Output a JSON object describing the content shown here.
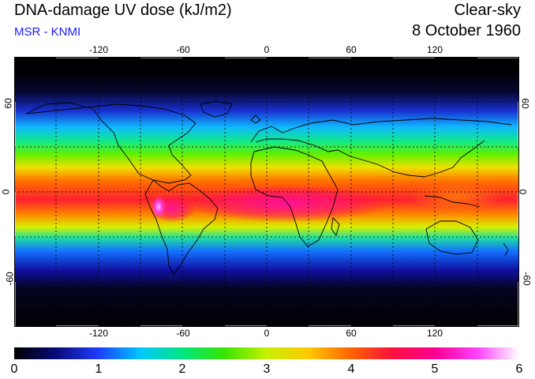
{
  "header": {
    "title": "DNA-damage UV dose (kJ/m2)",
    "subtitle": "MSR - KNMI",
    "condition": "Clear-sky",
    "date": "8 October 1960"
  },
  "map": {
    "lon_ticks": [
      "-120",
      "-60",
      "0",
      "60",
      "120"
    ],
    "lat_ticks": [
      "60",
      "0",
      "-60"
    ],
    "lon_range": [
      -180,
      180
    ],
    "lat_range": [
      -90,
      90
    ],
    "gridlines": "dotted every 30 degrees"
  },
  "colorbar": {
    "labels": [
      "0",
      "1",
      "2",
      "3",
      "4",
      "5",
      "6"
    ],
    "range": [
      0,
      6
    ],
    "colors": [
      "#000000",
      "#0a0a7a",
      "#1e3cff",
      "#00c8ff",
      "#00e680",
      "#38e600",
      "#c8f000",
      "#ffc800",
      "#ff6400",
      "#ff1040",
      "#ff0090",
      "#ff40ff",
      "#ffffff"
    ]
  }
}
